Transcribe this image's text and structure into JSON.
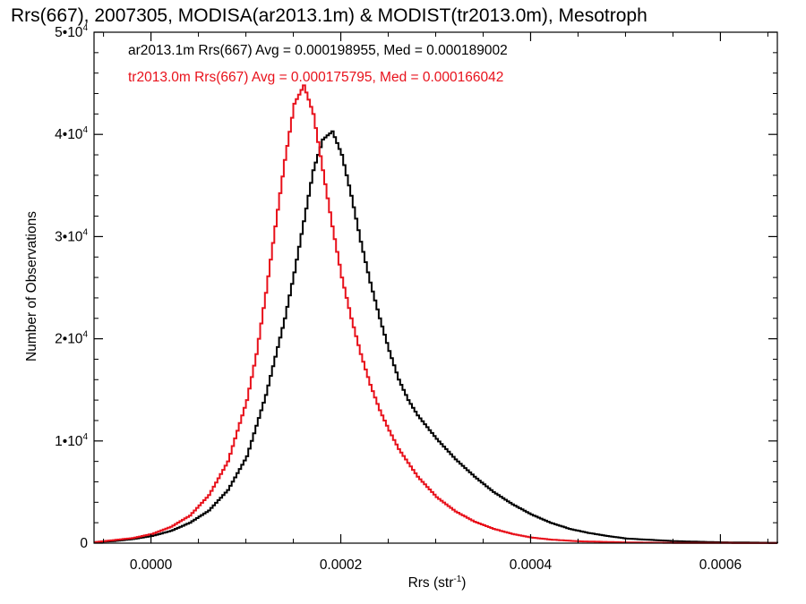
{
  "chart_data": {
    "type": "line",
    "title": "Rrs(667), 2007305, MODISA(ar2013.1m) & MODIST(tr2013.0m), Mesotroph",
    "xlabel": {
      "text": "Rrs (str",
      "sup": "-1",
      "close": ")"
    },
    "ylabel": "Number of Observations",
    "xlim": [
      -6e-05,
      0.00066
    ],
    "ylim": [
      0,
      50000
    ],
    "x_ticks": [
      {
        "value": 0.0,
        "label": "0.0000"
      },
      {
        "value": 0.0002,
        "label": "0.0002"
      },
      {
        "value": 0.0004,
        "label": "0.0004"
      },
      {
        "value": 0.0006,
        "label": "0.0006"
      }
    ],
    "y_ticks": [
      {
        "value": 0,
        "base": "0",
        "exp": ""
      },
      {
        "value": 10000,
        "base": "1•10",
        "exp": "4"
      },
      {
        "value": 20000,
        "base": "2•10",
        "exp": "4"
      },
      {
        "value": 30000,
        "base": "3•10",
        "exp": "4"
      },
      {
        "value": 40000,
        "base": "4•10",
        "exp": "4"
      },
      {
        "value": 50000,
        "base": "5•10",
        "exp": "4"
      }
    ],
    "grid": false,
    "series": [
      {
        "name": "ar2013.1m",
        "color": "#000000",
        "legend_text": "ar2013.1m Rrs(667) Avg = 0.000198955, Med = 0.000189002",
        "x": [
          -6e-05,
          -4e-05,
          -2e-05,
          0.0,
          2e-05,
          4e-05,
          6e-05,
          8e-05,
          0.0001,
          0.00012,
          0.00014,
          0.00015,
          0.00016,
          0.00017,
          0.00018,
          0.00019,
          0.0002,
          0.00021,
          0.00022,
          0.00023,
          0.00024,
          0.00025,
          0.00026,
          0.00027,
          0.00028,
          0.0003,
          0.00032,
          0.00034,
          0.00036,
          0.00038,
          0.0004,
          0.00042,
          0.00044,
          0.00046,
          0.00048,
          0.0005,
          0.00055,
          0.0006,
          0.00066
        ],
        "y": [
          100,
          200,
          400,
          700,
          1200,
          2000,
          3200,
          5200,
          8500,
          14500,
          22000,
          26500,
          31500,
          36500,
          39500,
          40300,
          38000,
          34000,
          29500,
          25500,
          22000,
          18800,
          16000,
          14000,
          12500,
          10200,
          8200,
          6500,
          5000,
          3800,
          2800,
          2000,
          1400,
          1000,
          700,
          450,
          200,
          80,
          30
        ]
      },
      {
        "name": "tr2013.0m",
        "color": "#e8111b",
        "legend_text": "tr2013.0m Rrs(667) Avg = 0.000175795, Med = 0.000166042",
        "x": [
          -6e-05,
          -4e-05,
          -2e-05,
          0.0,
          2e-05,
          4e-05,
          6e-05,
          8e-05,
          0.0001,
          0.00011,
          0.00012,
          0.00013,
          0.00014,
          0.00015,
          0.00016,
          0.00017,
          0.00018,
          0.00019,
          0.0002,
          0.00021,
          0.00022,
          0.00023,
          0.00024,
          0.00025,
          0.00026,
          0.00028,
          0.0003,
          0.00032,
          0.00034,
          0.00036,
          0.00038,
          0.0004,
          0.00042,
          0.00045,
          0.0005,
          0.00055,
          0.0006,
          0.00066
        ],
        "y": [
          100,
          300,
          500,
          900,
          1600,
          2700,
          4700,
          8000,
          14000,
          18500,
          24500,
          31000,
          37500,
          43000,
          44800,
          42000,
          36500,
          31000,
          26000,
          22000,
          18500,
          15500,
          13000,
          11000,
          9200,
          6500,
          4500,
          3100,
          2100,
          1400,
          900,
          550,
          350,
          180,
          70,
          30,
          15,
          5
        ]
      }
    ]
  }
}
